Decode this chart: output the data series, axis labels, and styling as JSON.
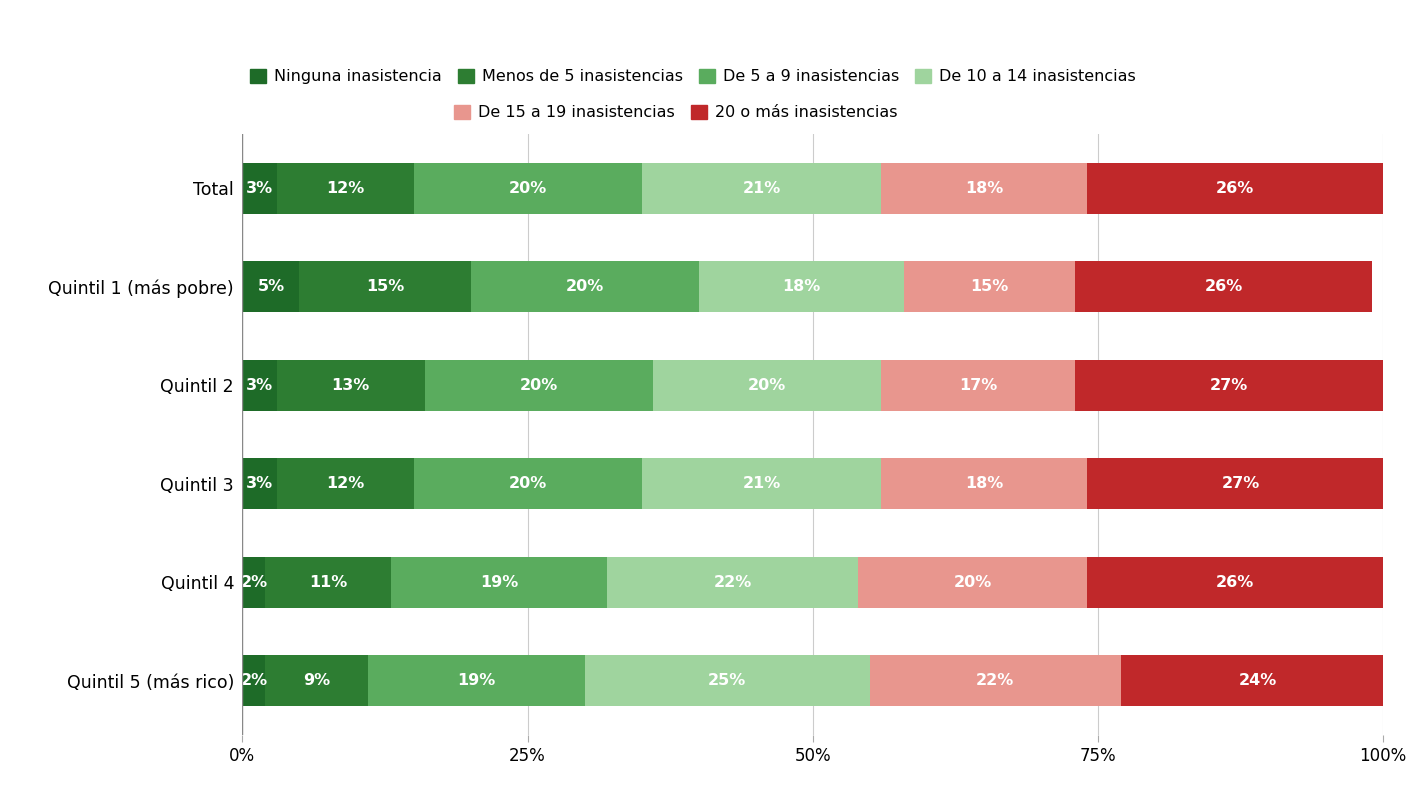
{
  "categories": [
    "Total",
    "Quintil 1 (más pobre)",
    "Quintil 2",
    "Quintil 3",
    "Quintil 4",
    "Quintil 5 (más rico)"
  ],
  "series": [
    {
      "label": "Ninguna inasistencia",
      "color": "#1e6b28",
      "values": [
        3,
        5,
        3,
        3,
        2,
        2
      ]
    },
    {
      "label": "Menos de 5 inasistencias",
      "color": "#2d7d32",
      "values": [
        12,
        15,
        13,
        12,
        11,
        9
      ]
    },
    {
      "label": "De 5 a 9 inasistencias",
      "color": "#5aac5e",
      "values": [
        20,
        20,
        20,
        20,
        19,
        19
      ]
    },
    {
      "label": "De 10 a 14 inasistencias",
      "color": "#9fd49e",
      "values": [
        21,
        18,
        20,
        21,
        22,
        25
      ]
    },
    {
      "label": "De 15 a 19 inasistencias",
      "color": "#e8968e",
      "values": [
        18,
        15,
        17,
        18,
        20,
        22
      ]
    },
    {
      "label": "20 o más inasistencias",
      "color": "#c0282a",
      "values": [
        26,
        26,
        27,
        27,
        26,
        24
      ]
    }
  ],
  "xticks": [
    0,
    25,
    50,
    75,
    100
  ],
  "xtick_labels": [
    "0%",
    "25%",
    "50%",
    "75%",
    "100%"
  ],
  "background_color": "#ffffff",
  "bar_height": 0.52,
  "figsize": [
    14.26,
    7.9
  ],
  "dpi": 100,
  "legend_fontsize": 11.5,
  "tick_fontsize": 12,
  "label_fontsize": 11.5,
  "category_fontsize": 12.5,
  "legend_row1": [
    "Ninguna inasistencia",
    "Menos de 5 inasistencias",
    "De 5 a 9 inasistencias",
    "De 10 a 14 inasistencias"
  ],
  "legend_row2": [
    "De 15 a 19 inasistencias",
    "20 o más inasistencias"
  ]
}
